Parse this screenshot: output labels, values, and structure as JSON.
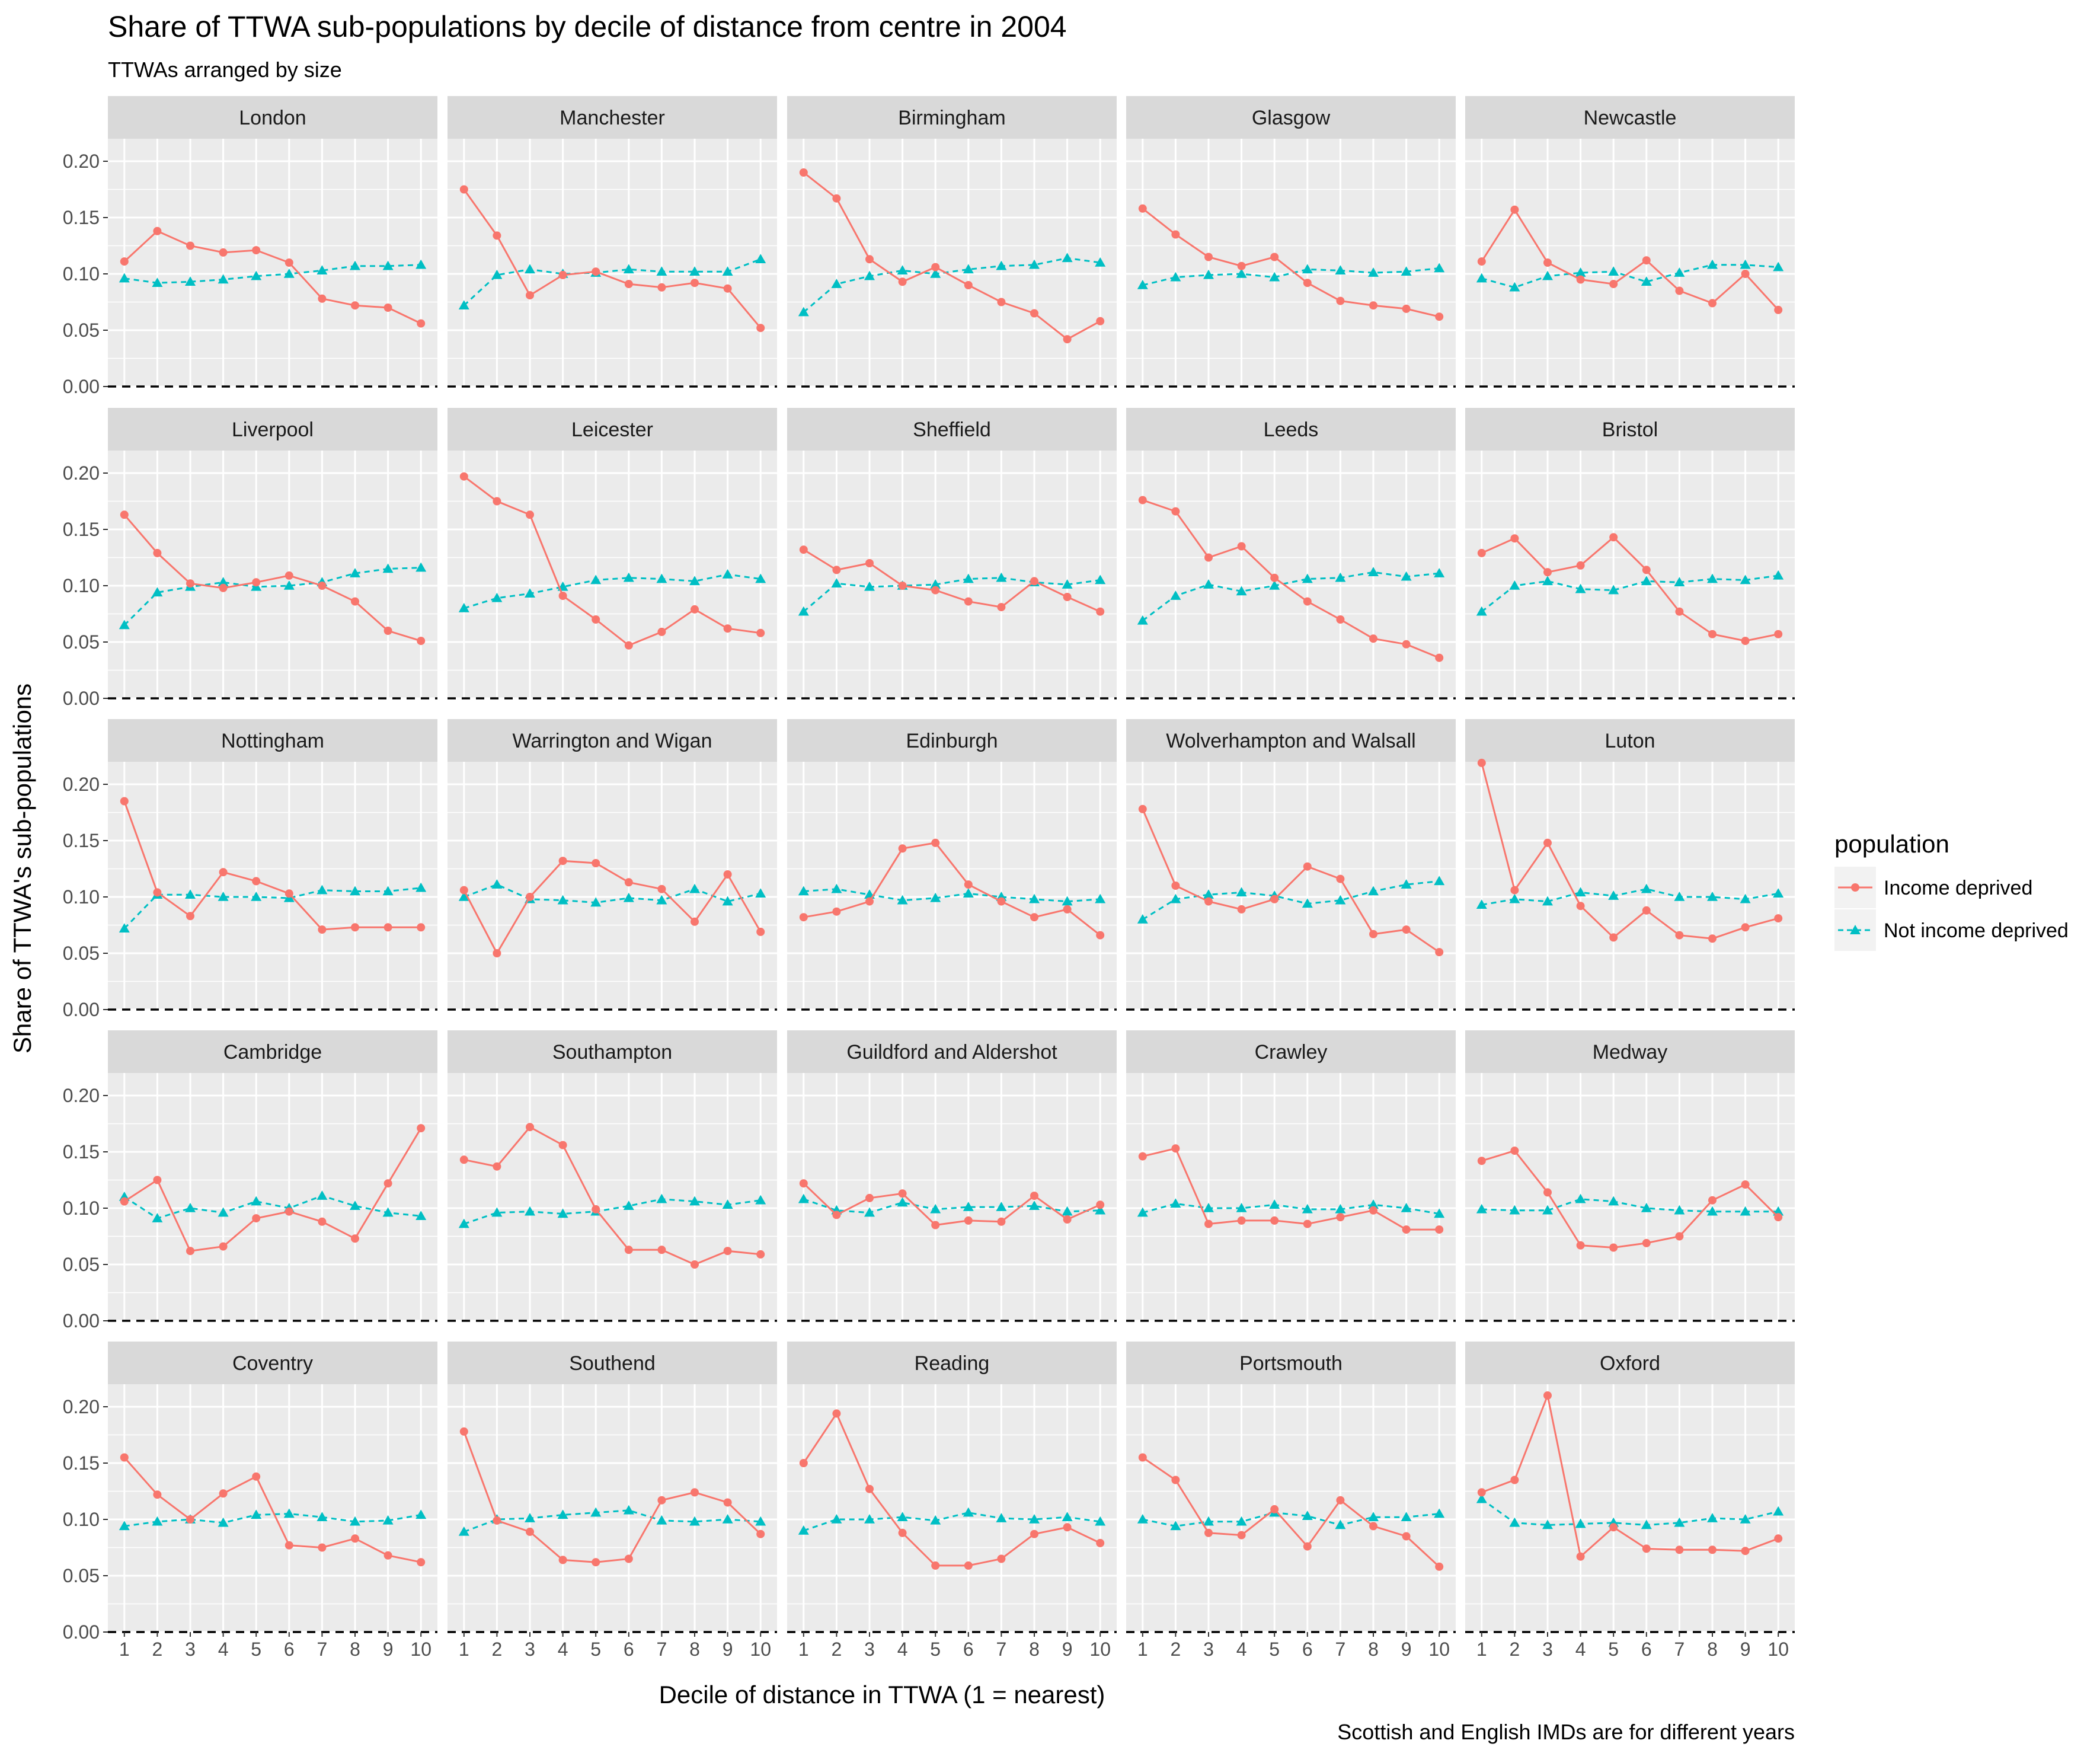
{
  "chart_data": {
    "type": "line",
    "title": "Share of TTWA sub-populations by decile of distance from centre in 2004",
    "subtitle": "TTWAs arranged by size",
    "xlabel": "Decile of distance in TTWA (1 = nearest)",
    "ylabel": "Share of TTWA's sub-populations",
    "caption": "Scottish and English IMDs are for different years",
    "x": [
      1,
      2,
      3,
      4,
      5,
      6,
      7,
      8,
      9,
      10
    ],
    "x_tick_labels": [
      "1",
      "2",
      "3",
      "4",
      "5",
      "6",
      "7",
      "8",
      "9",
      "10"
    ],
    "ylim": [
      0,
      0.22
    ],
    "y_ticks": [
      0,
      0.05,
      0.1,
      0.15,
      0.2
    ],
    "y_tick_labels": [
      "0.00",
      "0.05",
      "0.10",
      "0.15",
      "0.20"
    ],
    "reference_line": {
      "y": 0,
      "style": "dashed",
      "color": "#000000"
    },
    "grid": true,
    "legend": {
      "title": "population",
      "position": "right",
      "entries": [
        {
          "label": "Income deprived",
          "color": "#F8766D",
          "line": "solid",
          "marker": "circle"
        },
        {
          "label": "Not income deprived",
          "color": "#00BFC4",
          "line": "dashed",
          "marker": "triangle"
        }
      ]
    },
    "panels": [
      {
        "name": "London",
        "income_deprived": [
          0.111,
          0.138,
          0.125,
          0.119,
          0.121,
          0.11,
          0.078,
          0.072,
          0.07,
          0.056
        ],
        "not_income_deprived": [
          0.096,
          0.092,
          0.093,
          0.095,
          0.098,
          0.1,
          0.103,
          0.107,
          0.107,
          0.108
        ]
      },
      {
        "name": "Manchester",
        "income_deprived": [
          0.175,
          0.134,
          0.081,
          0.099,
          0.102,
          0.091,
          0.088,
          0.092,
          0.087,
          0.052
        ],
        "not_income_deprived": [
          0.072,
          0.099,
          0.104,
          0.1,
          0.101,
          0.104,
          0.102,
          0.102,
          0.102,
          0.113
        ]
      },
      {
        "name": "Birmingham",
        "income_deprived": [
          0.19,
          0.167,
          0.113,
          0.093,
          0.106,
          0.09,
          0.075,
          0.065,
          0.042,
          0.058
        ],
        "not_income_deprived": [
          0.066,
          0.091,
          0.098,
          0.103,
          0.1,
          0.104,
          0.107,
          0.108,
          0.114,
          0.11
        ]
      },
      {
        "name": "Glasgow",
        "income_deprived": [
          0.158,
          0.135,
          0.115,
          0.107,
          0.115,
          0.092,
          0.076,
          0.072,
          0.069,
          0.062
        ],
        "not_income_deprived": [
          0.09,
          0.097,
          0.099,
          0.1,
          0.097,
          0.104,
          0.103,
          0.101,
          0.102,
          0.105
        ]
      },
      {
        "name": "Newcastle",
        "income_deprived": [
          0.111,
          0.157,
          0.11,
          0.095,
          0.091,
          0.112,
          0.085,
          0.074,
          0.1,
          0.068
        ],
        "not_income_deprived": [
          0.096,
          0.088,
          0.098,
          0.101,
          0.102,
          0.093,
          0.101,
          0.108,
          0.108,
          0.106
        ]
      },
      {
        "name": "Liverpool",
        "income_deprived": [
          0.163,
          0.129,
          0.102,
          0.098,
          0.103,
          0.109,
          0.1,
          0.086,
          0.06,
          0.051
        ],
        "not_income_deprived": [
          0.065,
          0.094,
          0.099,
          0.103,
          0.099,
          0.1,
          0.103,
          0.111,
          0.115,
          0.116
        ]
      },
      {
        "name": "Leicester",
        "income_deprived": [
          0.197,
          0.175,
          0.163,
          0.091,
          0.07,
          0.047,
          0.059,
          0.079,
          0.062,
          0.058
        ],
        "not_income_deprived": [
          0.08,
          0.089,
          0.093,
          0.099,
          0.105,
          0.107,
          0.106,
          0.104,
          0.11,
          0.106
        ]
      },
      {
        "name": "Sheffield",
        "income_deprived": [
          0.132,
          0.114,
          0.12,
          0.1,
          0.096,
          0.086,
          0.081,
          0.104,
          0.09,
          0.077
        ],
        "not_income_deprived": [
          0.077,
          0.102,
          0.099,
          0.1,
          0.101,
          0.106,
          0.107,
          0.103,
          0.101,
          0.105
        ]
      },
      {
        "name": "Leeds",
        "income_deprived": [
          0.176,
          0.166,
          0.125,
          0.135,
          0.107,
          0.086,
          0.07,
          0.053,
          0.048,
          0.036
        ],
        "not_income_deprived": [
          0.069,
          0.091,
          0.101,
          0.095,
          0.1,
          0.106,
          0.107,
          0.112,
          0.108,
          0.111
        ]
      },
      {
        "name": "Bristol",
        "income_deprived": [
          0.129,
          0.142,
          0.112,
          0.118,
          0.143,
          0.114,
          0.077,
          0.057,
          0.051,
          0.057
        ],
        "not_income_deprived": [
          0.077,
          0.1,
          0.104,
          0.097,
          0.096,
          0.104,
          0.103,
          0.106,
          0.105,
          0.109
        ]
      },
      {
        "name": "Nottingham",
        "income_deprived": [
          0.185,
          0.104,
          0.083,
          0.122,
          0.114,
          0.103,
          0.071,
          0.073,
          0.073,
          0.073
        ],
        "not_income_deprived": [
          0.072,
          0.102,
          0.102,
          0.1,
          0.1,
          0.099,
          0.106,
          0.105,
          0.105,
          0.108
        ]
      },
      {
        "name": "Warrington and Wigan",
        "income_deprived": [
          0.106,
          0.05,
          0.1,
          0.132,
          0.13,
          0.113,
          0.107,
          0.078,
          0.12,
          0.069
        ],
        "not_income_deprived": [
          0.1,
          0.111,
          0.098,
          0.097,
          0.095,
          0.099,
          0.097,
          0.107,
          0.096,
          0.103
        ]
      },
      {
        "name": "Edinburgh",
        "income_deprived": [
          0.082,
          0.087,
          0.096,
          0.143,
          0.148,
          0.111,
          0.096,
          0.082,
          0.089,
          0.066
        ],
        "not_income_deprived": [
          0.105,
          0.107,
          0.102,
          0.097,
          0.099,
          0.103,
          0.1,
          0.098,
          0.096,
          0.098
        ]
      },
      {
        "name": "Wolverhampton and Walsall",
        "income_deprived": [
          0.178,
          0.11,
          0.096,
          0.089,
          0.098,
          0.127,
          0.116,
          0.067,
          0.071,
          0.051
        ],
        "not_income_deprived": [
          0.08,
          0.098,
          0.102,
          0.104,
          0.101,
          0.094,
          0.097,
          0.105,
          0.111,
          0.114
        ]
      },
      {
        "name": "Luton",
        "income_deprived": [
          0.219,
          0.106,
          0.148,
          0.092,
          0.064,
          0.088,
          0.066,
          0.063,
          0.073,
          0.081
        ],
        "not_income_deprived": [
          0.093,
          0.098,
          0.096,
          0.104,
          0.101,
          0.107,
          0.1,
          0.1,
          0.098,
          0.103
        ]
      },
      {
        "name": "Cambridge",
        "income_deprived": [
          0.106,
          0.125,
          0.062,
          0.066,
          0.091,
          0.097,
          0.088,
          0.073,
          0.122,
          0.171
        ],
        "not_income_deprived": [
          0.11,
          0.091,
          0.1,
          0.096,
          0.106,
          0.1,
          0.111,
          0.102,
          0.096,
          0.093
        ]
      },
      {
        "name": "Southampton",
        "income_deprived": [
          0.143,
          0.137,
          0.172,
          0.156,
          0.099,
          0.063,
          0.063,
          0.05,
          0.062,
          0.059
        ],
        "not_income_deprived": [
          0.086,
          0.096,
          0.097,
          0.095,
          0.097,
          0.102,
          0.108,
          0.106,
          0.103,
          0.107
        ]
      },
      {
        "name": "Guildford and Aldershot",
        "income_deprived": [
          0.122,
          0.094,
          0.109,
          0.113,
          0.085,
          0.089,
          0.088,
          0.111,
          0.09,
          0.103
        ],
        "not_income_deprived": [
          0.108,
          0.098,
          0.096,
          0.105,
          0.099,
          0.101,
          0.101,
          0.102,
          0.097,
          0.098
        ]
      },
      {
        "name": "Crawley",
        "income_deprived": [
          0.146,
          0.153,
          0.086,
          0.089,
          0.089,
          0.086,
          0.092,
          0.098,
          0.081,
          0.081
        ],
        "not_income_deprived": [
          0.096,
          0.104,
          0.1,
          0.1,
          0.103,
          0.099,
          0.099,
          0.103,
          0.1,
          0.095
        ]
      },
      {
        "name": "Medway",
        "income_deprived": [
          0.142,
          0.151,
          0.114,
          0.067,
          0.065,
          0.069,
          0.075,
          0.107,
          0.121,
          0.092
        ],
        "not_income_deprived": [
          0.099,
          0.098,
          0.098,
          0.108,
          0.106,
          0.1,
          0.098,
          0.097,
          0.097,
          0.097
        ]
      },
      {
        "name": "Coventry",
        "income_deprived": [
          0.155,
          0.122,
          0.1,
          0.123,
          0.138,
          0.077,
          0.075,
          0.083,
          0.068,
          0.062
        ],
        "not_income_deprived": [
          0.094,
          0.098,
          0.1,
          0.097,
          0.104,
          0.105,
          0.102,
          0.098,
          0.099,
          0.104
        ]
      },
      {
        "name": "Southend",
        "income_deprived": [
          0.178,
          0.099,
          0.089,
          0.064,
          0.062,
          0.065,
          0.117,
          0.124,
          0.115,
          0.087
        ],
        "not_income_deprived": [
          0.089,
          0.1,
          0.101,
          0.104,
          0.106,
          0.108,
          0.099,
          0.098,
          0.1,
          0.098
        ]
      },
      {
        "name": "Reading",
        "income_deprived": [
          0.15,
          0.194,
          0.127,
          0.088,
          0.059,
          0.059,
          0.065,
          0.087,
          0.093,
          0.079
        ],
        "not_income_deprived": [
          0.09,
          0.1,
          0.1,
          0.102,
          0.099,
          0.106,
          0.101,
          0.1,
          0.102,
          0.098
        ]
      },
      {
        "name": "Portsmouth",
        "income_deprived": [
          0.155,
          0.135,
          0.088,
          0.086,
          0.109,
          0.076,
          0.117,
          0.094,
          0.085,
          0.058
        ],
        "not_income_deprived": [
          0.1,
          0.094,
          0.098,
          0.098,
          0.106,
          0.103,
          0.095,
          0.102,
          0.102,
          0.105
        ]
      },
      {
        "name": "Oxford",
        "income_deprived": [
          0.124,
          0.135,
          0.21,
          0.067,
          0.093,
          0.074,
          0.073,
          0.073,
          0.072,
          0.083
        ],
        "not_income_deprived": [
          0.118,
          0.097,
          0.095,
          0.096,
          0.097,
          0.095,
          0.097,
          0.101,
          0.1,
          0.107
        ]
      }
    ]
  }
}
